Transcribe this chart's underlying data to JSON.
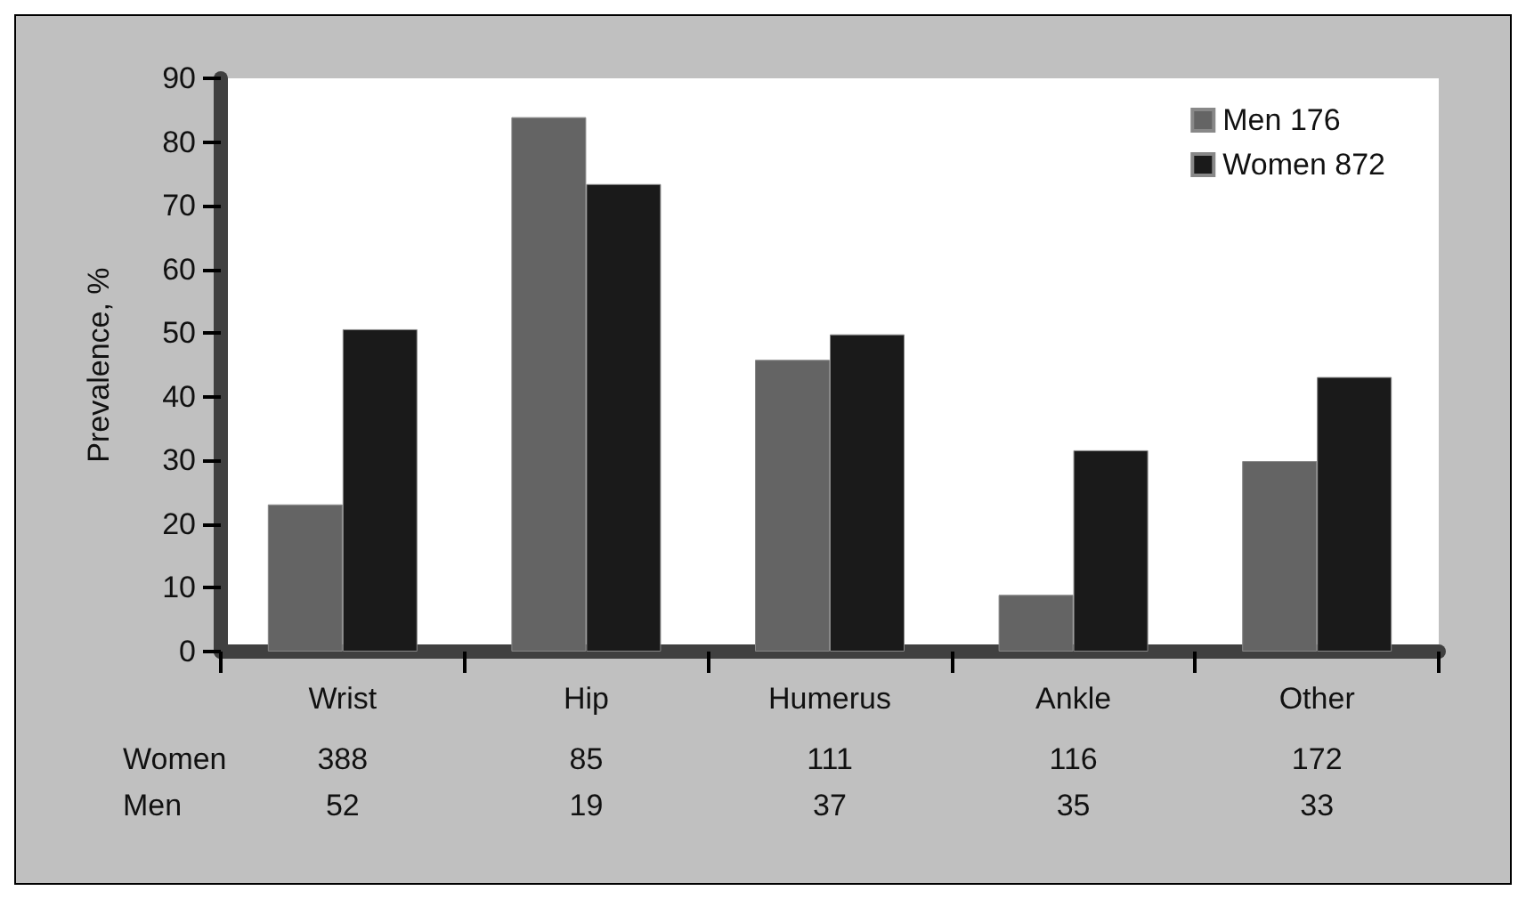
{
  "chart_data": {
    "type": "bar",
    "ylabel": "Prevalence, %",
    "categories": [
      "Wrist",
      "Hip",
      "Humerus",
      "Ankle",
      "Other"
    ],
    "series": [
      {
        "name": "Men 176",
        "color": "#646464",
        "values": [
          23.1,
          83.9,
          45.8,
          8.9,
          29.9
        ]
      },
      {
        "name": "Women 872",
        "color": "#1a1a1a",
        "values": [
          50.6,
          73.4,
          49.8,
          31.6,
          43.1
        ]
      }
    ],
    "ylim": [
      0,
      90
    ],
    "yticks": [
      0,
      10,
      20,
      30,
      40,
      50,
      60,
      70,
      80,
      90
    ],
    "grid": false,
    "legend": "top right",
    "annotations": [
      "Women",
      "388",
      "85",
      "111",
      "116",
      "172",
      "Men",
      "52",
      "19",
      "37",
      "35",
      "33"
    ]
  }
}
